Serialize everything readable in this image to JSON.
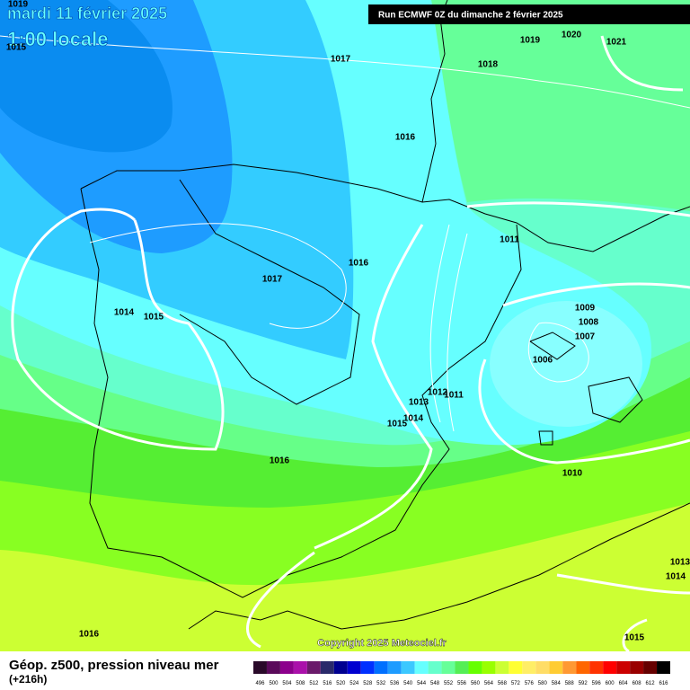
{
  "header": {
    "date": "mardi 11 février 2025",
    "time": "1:00 locale",
    "run": "Run ECMWF 0Z du dimanche 2 février 2025"
  },
  "isobar_labels": [
    "1019",
    "1015",
    "1017",
    "1018",
    "1019",
    "1020",
    "1021",
    "1016",
    "1011",
    "1016",
    "1017",
    "1014",
    "1015",
    "1009",
    "1008",
    "1007",
    "1006",
    "1012",
    "1011",
    "1013",
    "1014",
    "1015",
    "1016",
    "1010",
    "1013",
    "1014",
    "1016",
    "1015"
  ],
  "copyright": "Copyright 2025 Meteociel.fr",
  "footer": {
    "title": "Géop. z500, pression niveau mer",
    "lead": "(+216h)"
  },
  "colorbar": [
    {
      "value": 496,
      "color": "#2a0a2a"
    },
    {
      "value": 500,
      "color": "#5a0a5a"
    },
    {
      "value": 504,
      "color": "#8c008c"
    },
    {
      "value": 508,
      "color": "#aa10aa"
    },
    {
      "value": 512,
      "color": "#6a1a6a"
    },
    {
      "value": 516,
      "color": "#2a2a6a"
    },
    {
      "value": 520,
      "color": "#000090"
    },
    {
      "value": 524,
      "color": "#0000d0"
    },
    {
      "value": 528,
      "color": "#0030ff"
    },
    {
      "value": 532,
      "color": "#0070ff"
    },
    {
      "value": 536,
      "color": "#1e9cff"
    },
    {
      "value": 540,
      "color": "#3cc8ff"
    },
    {
      "value": 544,
      "color": "#66ffff"
    },
    {
      "value": 548,
      "color": "#66ffcc"
    },
    {
      "value": 552,
      "color": "#66ff99"
    },
    {
      "value": 556,
      "color": "#55ee55"
    },
    {
      "value": 560,
      "color": "#66ff00"
    },
    {
      "value": 564,
      "color": "#99ff00"
    },
    {
      "value": 568,
      "color": "#ccff33"
    },
    {
      "value": 572,
      "color": "#ffff33"
    },
    {
      "value": 576,
      "color": "#ffee66"
    },
    {
      "value": 580,
      "color": "#ffdd66"
    },
    {
      "value": 584,
      "color": "#ffcc33"
    },
    {
      "value": 588,
      "color": "#ff9933"
    },
    {
      "value": 592,
      "color": "#ff6600"
    },
    {
      "value": 596,
      "color": "#ff3300"
    },
    {
      "value": 600,
      "color": "#ff0000"
    },
    {
      "value": 604,
      "color": "#cc0000"
    },
    {
      "value": 608,
      "color": "#990000"
    },
    {
      "value": 612,
      "color": "#660000"
    },
    {
      "value": 616,
      "color": "#000000"
    }
  ]
}
